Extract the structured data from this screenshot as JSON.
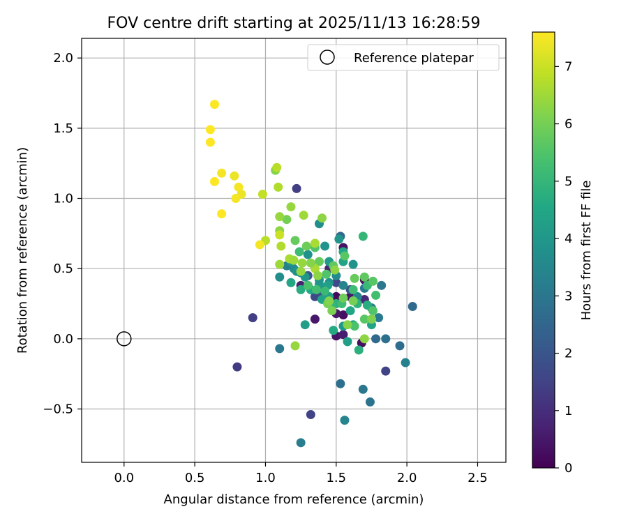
{
  "chart_data": {
    "type": "scatter",
    "title": "FOV centre drift starting at 2025/11/13 16:28:59",
    "xlabel": "Angular distance from reference (arcmin)",
    "ylabel": "Rotation from reference (arcmin)",
    "xlim": [
      -0.3,
      2.7
    ],
    "ylim": [
      -0.88,
      2.14
    ],
    "xticks": [
      0.0,
      0.5,
      1.0,
      1.5,
      2.0,
      2.5
    ],
    "xtick_labels": [
      "0.0",
      "0.5",
      "1.0",
      "1.5",
      "2.0",
      "2.5"
    ],
    "yticks": [
      -0.5,
      0.0,
      0.5,
      1.0,
      1.5,
      2.0
    ],
    "ytick_labels": [
      "−0.5",
      "0.0",
      "0.5",
      "1.0",
      "1.5",
      "2.0"
    ],
    "grid": true,
    "legend": {
      "position": "top-right",
      "entries": [
        "Reference platepar"
      ]
    },
    "reference_point": {
      "x": 0.0,
      "y": 0.0,
      "marker": "hollow-circle",
      "color": "#000000"
    },
    "colorbar": {
      "label": "Hours from first FF file",
      "min": 0,
      "max": 7.6,
      "ticks": [
        0,
        1,
        2,
        3,
        4,
        5,
        6,
        7
      ],
      "tick_labels": [
        "0",
        "1",
        "2",
        "3",
        "4",
        "5",
        "6",
        "7"
      ],
      "colormap": "viridis"
    },
    "colormap_stops": [
      "#440154",
      "#482475",
      "#414487",
      "#355f8d",
      "#2a788e",
      "#21918c",
      "#22a884",
      "#44bf70",
      "#7ad151",
      "#bddf26",
      "#fde725"
    ],
    "series": [
      {
        "points": [
          [
            1.3,
            0.38,
            0.3
          ],
          [
            1.4,
            0.35,
            0.4
          ],
          [
            1.5,
            0.3,
            0.2
          ],
          [
            1.55,
            0.17,
            0.3
          ],
          [
            1.5,
            0.18,
            0.5
          ],
          [
            1.55,
            0.65,
            0.4
          ],
          [
            1.7,
            0.42,
            0.2
          ],
          [
            1.68,
            -0.03,
            0.3
          ],
          [
            1.5,
            0.02,
            0.4
          ],
          [
            1.55,
            0.03,
            0.6
          ],
          [
            1.35,
            0.14,
            0.5
          ],
          [
            1.25,
            0.38,
            0.7
          ],
          [
            1.45,
            0.5,
            0.8
          ],
          [
            1.6,
            0.3,
            0.5
          ],
          [
            1.7,
            0.28,
            0.9
          ],
          [
            1.22,
            1.07,
            1.4
          ],
          [
            0.91,
            0.15,
            1.4
          ],
          [
            0.8,
            -0.2,
            1.3
          ],
          [
            1.32,
            -0.54,
            1.5
          ],
          [
            1.85,
            -0.23,
            1.5
          ],
          [
            1.4,
            0.33,
            1.8
          ],
          [
            1.5,
            0.4,
            1.6
          ],
          [
            1.6,
            0.35,
            1.9
          ],
          [
            1.3,
            0.45,
            2.0
          ],
          [
            1.35,
            0.3,
            1.7
          ],
          [
            1.53,
            0.73,
            2.6
          ],
          [
            1.53,
            -0.32,
            2.8
          ],
          [
            1.56,
            -0.58,
            3.4
          ],
          [
            1.25,
            -0.74,
            3.2
          ],
          [
            1.69,
            -0.36,
            3.0
          ],
          [
            1.74,
            -0.45,
            2.9
          ],
          [
            1.1,
            -0.07,
            3.0
          ],
          [
            1.99,
            -0.17,
            3.3
          ],
          [
            2.04,
            0.23,
            2.6
          ],
          [
            1.95,
            -0.05,
            2.7
          ],
          [
            1.85,
            0.0,
            2.8
          ],
          [
            1.78,
            0.0,
            2.6
          ],
          [
            1.8,
            0.15,
            3.1
          ],
          [
            1.82,
            0.38,
            3.0
          ],
          [
            1.75,
            0.22,
            3.3
          ],
          [
            1.7,
            0.36,
            3.2
          ],
          [
            1.65,
            0.3,
            3.5
          ],
          [
            1.55,
            0.38,
            3.4
          ],
          [
            1.5,
            0.45,
            3.6
          ],
          [
            1.45,
            0.4,
            3.8
          ],
          [
            1.38,
            0.82,
            3.7
          ],
          [
            1.52,
            0.71,
            3.9
          ],
          [
            1.42,
            0.66,
            3.9
          ],
          [
            1.3,
            0.6,
            3.8
          ],
          [
            1.2,
            0.5,
            3.6
          ],
          [
            1.15,
            0.52,
            3.3
          ],
          [
            1.1,
            0.44,
            3.7
          ],
          [
            1.25,
            0.47,
            3.5
          ],
          [
            1.32,
            0.35,
            4.0
          ],
          [
            1.38,
            0.39,
            4.1
          ],
          [
            1.44,
            0.38,
            4.3
          ],
          [
            1.55,
            0.55,
            4.4
          ],
          [
            1.62,
            0.53,
            3.9
          ],
          [
            1.55,
            0.62,
            4.5
          ],
          [
            1.28,
            0.1,
            4.2
          ],
          [
            1.48,
            0.06,
            4.6
          ],
          [
            1.55,
            0.09,
            4.0
          ],
          [
            1.58,
            -0.02,
            4.3
          ],
          [
            1.66,
            -0.08,
            4.8
          ],
          [
            1.62,
            0.1,
            4.6
          ],
          [
            1.75,
            0.1,
            4.4
          ],
          [
            1.72,
            0.24,
            4.7
          ],
          [
            1.65,
            0.25,
            4.9
          ],
          [
            1.6,
            0.2,
            4.5
          ],
          [
            1.5,
            0.25,
            4.8
          ],
          [
            1.45,
            0.3,
            4.2
          ],
          [
            1.4,
            0.28,
            4.4
          ],
          [
            1.32,
            0.35,
            4.6
          ],
          [
            1.25,
            0.35,
            4.7
          ],
          [
            1.18,
            0.4,
            4.5
          ],
          [
            1.28,
            0.44,
            4.0
          ],
          [
            1.22,
            0.48,
            3.8
          ],
          [
            1.18,
            0.55,
            3.9
          ],
          [
            1.45,
            0.55,
            4.1
          ],
          [
            1.38,
            0.42,
            3.9
          ],
          [
            1.69,
            0.73,
            5.0
          ],
          [
            1.62,
            0.35,
            5.2
          ],
          [
            1.72,
            0.38,
            5.1
          ],
          [
            1.78,
            0.31,
            5.3
          ],
          [
            1.76,
            0.2,
            5.5
          ],
          [
            1.7,
            0.14,
            5.6
          ],
          [
            1.63,
            0.09,
            5.4
          ],
          [
            1.54,
            0.25,
            5.2
          ],
          [
            1.47,
            0.24,
            5.0
          ],
          [
            1.42,
            0.34,
            5.1
          ],
          [
            1.36,
            0.35,
            5.3
          ],
          [
            1.3,
            0.38,
            5.4
          ],
          [
            1.24,
            0.62,
            5.2
          ],
          [
            1.35,
            0.65,
            5.5
          ],
          [
            1.56,
            0.59,
            5.6
          ],
          [
            1.48,
            0.52,
            5.7
          ],
          [
            1.38,
            0.55,
            5.8
          ],
          [
            1.29,
            0.66,
            5.9
          ],
          [
            1.43,
            0.46,
            5.5
          ],
          [
            1.63,
            0.43,
            5.8
          ],
          [
            1.7,
            0.44,
            5.7
          ],
          [
            1.76,
            0.41,
            5.6
          ],
          [
            1.55,
            0.29,
            5.9
          ],
          [
            1.44,
            0.25,
            6.0
          ],
          [
            1.21,
            0.7,
            5.8
          ],
          [
            1.15,
            0.85,
            6.0
          ],
          [
            1.07,
            1.2,
            6.2
          ],
          [
            1.1,
            0.77,
            6.3
          ],
          [
            1.1,
            0.87,
            6.4
          ],
          [
            1.18,
            0.94,
            6.4
          ],
          [
            1.27,
            0.88,
            6.5
          ],
          [
            1.4,
            0.86,
            6.3
          ],
          [
            1.35,
            0.68,
            6.6
          ],
          [
            1.25,
            0.48,
            6.4
          ],
          [
            1.35,
            0.5,
            6.6
          ],
          [
            1.49,
            0.49,
            6.3
          ],
          [
            1.45,
            0.27,
            6.2
          ],
          [
            1.47,
            0.2,
            6.1
          ],
          [
            1.62,
            0.27,
            6.0
          ],
          [
            1.58,
            0.1,
            6.2
          ],
          [
            1.7,
            0.0,
            6.3
          ],
          [
            1.75,
            0.14,
            6.1
          ],
          [
            1.21,
            -0.05,
            6.4
          ],
          [
            1.1,
            0.53,
            6.5
          ],
          [
            1.11,
            0.66,
            6.7
          ],
          [
            1.17,
            0.57,
            6.6
          ],
          [
            1.2,
            0.56,
            6.5
          ],
          [
            1.26,
            0.54,
            6.4
          ],
          [
            1.32,
            0.54,
            6.2
          ],
          [
            1.37,
            0.45,
            6.3
          ],
          [
            1.0,
            0.7,
            6.8
          ],
          [
            1.08,
            1.22,
            6.8
          ],
          [
            1.09,
            1.08,
            6.7
          ],
          [
            0.98,
            1.03,
            6.9
          ],
          [
            1.1,
            0.74,
            7.0
          ],
          [
            0.96,
            0.67,
            7.5
          ],
          [
            0.64,
            1.67,
            7.6
          ],
          [
            0.61,
            1.49,
            7.6
          ],
          [
            0.61,
            1.4,
            7.6
          ],
          [
            0.69,
            1.18,
            7.5
          ],
          [
            0.64,
            1.12,
            7.6
          ],
          [
            0.78,
            1.16,
            7.4
          ],
          [
            0.81,
            1.08,
            7.5
          ],
          [
            0.83,
            1.03,
            7.4
          ],
          [
            0.79,
            1.0,
            7.5
          ],
          [
            0.69,
            0.89,
            7.6
          ]
        ]
      }
    ]
  }
}
